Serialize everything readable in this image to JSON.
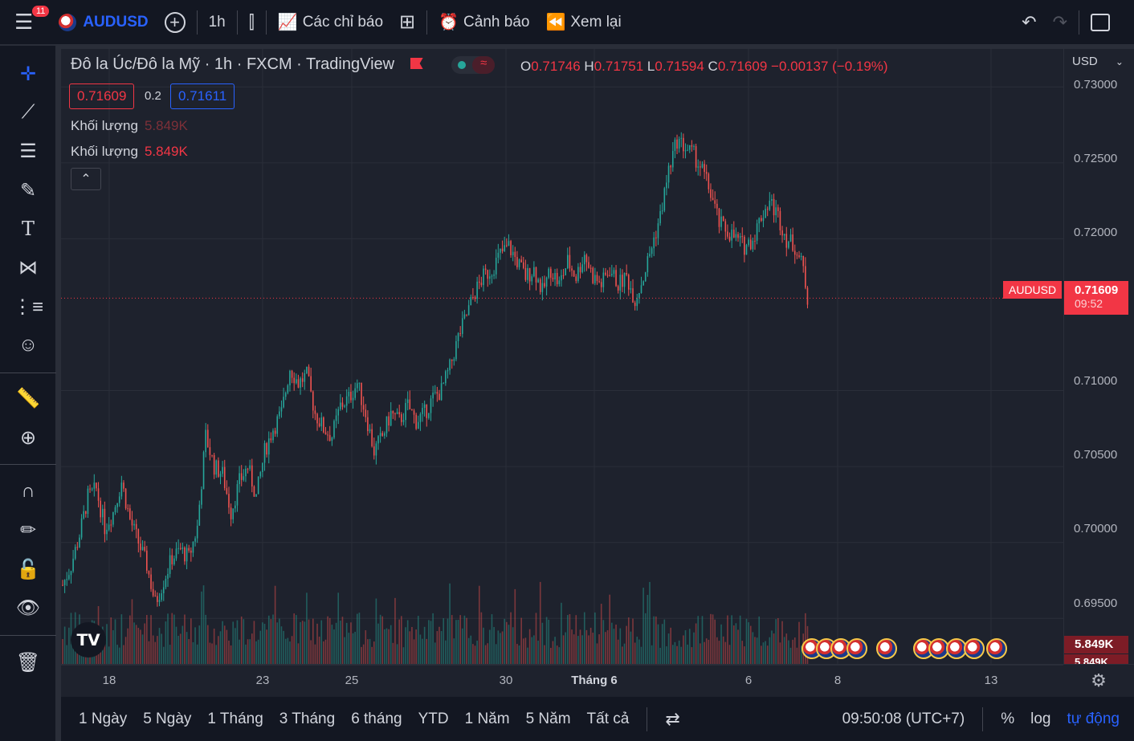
{
  "topbar": {
    "notifications": "11",
    "symbol": "AUDUSD",
    "interval": "1h",
    "indicators_label": "Các chỉ báo",
    "alert_label": "Cảnh báo",
    "replay_label": "Xem lại"
  },
  "legend": {
    "title": "Đô la Úc/Đô la Mỹ · 1h · FXCM · TradingView",
    "open_label": "O",
    "open": "0.71746",
    "high_label": "H",
    "high": "0.71751",
    "low_label": "L",
    "low": "0.71594",
    "close_label": "C",
    "close": "0.71609",
    "change": "−0.00137 (−0.19%)",
    "sell_price": "0.71609",
    "spread": "0.2",
    "buy_price": "0.71611",
    "volume_label_1": "Khối lượng",
    "volume_value_1": "5.849K",
    "volume_label_2": "Khối lượng",
    "volume_value_2": "5.849K"
  },
  "yaxis": {
    "currency": "USD",
    "ticks": [
      "0.73000",
      "0.72500",
      "0.72000",
      "0.71000",
      "0.70500",
      "0.70000",
      "0.69500"
    ],
    "current_symbol": "AUDUSD",
    "current_price": "0.71609",
    "countdown": "09:52",
    "volume_label": "5.849K",
    "volume_label_2": "5.849K"
  },
  "xaxis": {
    "ticks": [
      "18",
      "23",
      "25",
      "30",
      "Tháng 6",
      "6",
      "8",
      "13"
    ]
  },
  "bottombar": {
    "ranges": [
      "1 Ngày",
      "5 Ngày",
      "1 Tháng",
      "3 Tháng",
      "6 tháng",
      "YTD",
      "1 Năm",
      "5 Năm",
      "Tất cả"
    ],
    "time": "09:50:08 (UTC+7)",
    "percent": "%",
    "log": "log",
    "auto": "tự động"
  },
  "colors": {
    "up": "#26a69a",
    "down": "#ef5350",
    "accent": "#2962ff",
    "background": "#1e222d"
  },
  "chart_data": {
    "type": "candlestick",
    "title": "Đô la Úc/Đô la Mỹ · 1h · FXCM",
    "ylim": [
      0.692,
      0.7325
    ],
    "y_ticks": [
      0.695,
      0.7,
      0.705,
      0.71,
      0.72,
      0.725,
      0.73
    ],
    "x_tick_labels": [
      "18",
      "23",
      "25",
      "30",
      "Tháng 6",
      "6",
      "8",
      "13"
    ],
    "last_price": 0.71609,
    "close_path": [
      [
        0,
        0.6972
      ],
      [
        4,
        0.6985
      ],
      [
        8,
        0.7005
      ],
      [
        12,
        0.703
      ],
      [
        16,
        0.7035
      ],
      [
        20,
        0.701
      ],
      [
        24,
        0.702
      ],
      [
        28,
        0.704
      ],
      [
        32,
        0.7015
      ],
      [
        36,
        0.7
      ],
      [
        40,
        0.6985
      ],
      [
        44,
        0.696
      ],
      [
        48,
        0.6975
      ],
      [
        52,
        0.699
      ],
      [
        56,
        0.6995
      ],
      [
        60,
        0.699
      ],
      [
        64,
        0.701
      ],
      [
        68,
        0.707
      ],
      [
        72,
        0.705
      ],
      [
        76,
        0.7045
      ],
      [
        80,
        0.702
      ],
      [
        84,
        0.704
      ],
      [
        88,
        0.705
      ],
      [
        92,
        0.703
      ],
      [
        96,
        0.706
      ],
      [
        100,
        0.7075
      ],
      [
        104,
        0.7085
      ],
      [
        108,
        0.7115
      ],
      [
        112,
        0.7105
      ],
      [
        116,
        0.711
      ],
      [
        120,
        0.7085
      ],
      [
        124,
        0.7075
      ],
      [
        128,
        0.707
      ],
      [
        132,
        0.709
      ],
      [
        136,
        0.7095
      ],
      [
        140,
        0.7105
      ],
      [
        144,
        0.7085
      ],
      [
        148,
        0.706
      ],
      [
        152,
        0.707
      ],
      [
        156,
        0.7085
      ],
      [
        160,
        0.708
      ],
      [
        164,
        0.709
      ],
      [
        168,
        0.708
      ],
      [
        172,
        0.7085
      ],
      [
        176,
        0.7095
      ],
      [
        180,
        0.71
      ],
      [
        184,
        0.7115
      ],
      [
        188,
        0.7135
      ],
      [
        192,
        0.715
      ],
      [
        196,
        0.7165
      ],
      [
        200,
        0.7175
      ],
      [
        204,
        0.718
      ],
      [
        208,
        0.719
      ],
      [
        212,
        0.7195
      ],
      [
        216,
        0.7185
      ],
      [
        220,
        0.7175
      ],
      [
        224,
        0.718
      ],
      [
        228,
        0.7165
      ],
      [
        232,
        0.718
      ],
      [
        236,
        0.717
      ],
      [
        240,
        0.7185
      ],
      [
        244,
        0.7175
      ],
      [
        248,
        0.719
      ],
      [
        252,
        0.7175
      ],
      [
        256,
        0.717
      ],
      [
        260,
        0.718
      ],
      [
        264,
        0.717
      ],
      [
        268,
        0.7175
      ],
      [
        272,
        0.716
      ],
      [
        276,
        0.7175
      ],
      [
        280,
        0.7195
      ],
      [
        284,
        0.7215
      ],
      [
        288,
        0.7245
      ],
      [
        292,
        0.7265
      ],
      [
        296,
        0.726
      ],
      [
        300,
        0.7255
      ],
      [
        304,
        0.7245
      ],
      [
        308,
        0.723
      ],
      [
        312,
        0.721
      ],
      [
        316,
        0.7205
      ],
      [
        320,
        0.72
      ],
      [
        324,
        0.7195
      ],
      [
        328,
        0.72
      ],
      [
        332,
        0.7215
      ],
      [
        336,
        0.7225
      ],
      [
        340,
        0.7215
      ],
      [
        344,
        0.72
      ],
      [
        348,
        0.7195
      ],
      [
        352,
        0.718
      ],
      [
        354,
        0.7161
      ]
    ]
  }
}
